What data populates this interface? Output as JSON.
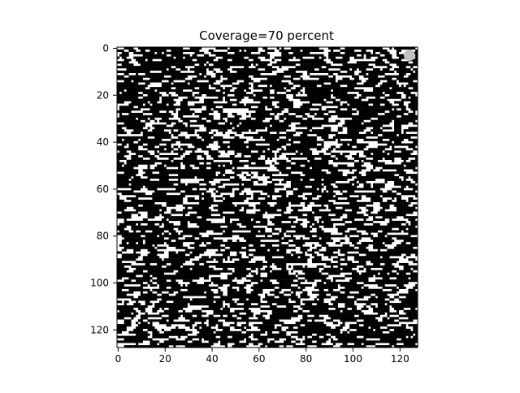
{
  "chart_data": {
    "type": "heatmap",
    "title": "Coverage=70 percent",
    "xlabel": "",
    "ylabel": "",
    "grid": false,
    "legend": "none",
    "rows": 128,
    "cols": 128,
    "coverage_percent": 70,
    "x_range": [
      0,
      127
    ],
    "y_range": [
      0,
      127
    ],
    "y_inverted": true,
    "x_ticks": [
      0,
      20,
      40,
      60,
      80,
      100,
      120
    ],
    "y_ticks": [
      0,
      20,
      40,
      60,
      80,
      100,
      120
    ],
    "x_tick_labels": [
      "0",
      "20",
      "40",
      "60",
      "80",
      "100",
      "120"
    ],
    "y_tick_labels": [
      "0",
      "20",
      "40",
      "60",
      "80",
      "100",
      "120"
    ],
    "colors": {
      "filled": "#000000",
      "empty": "#ffffff",
      "marker": "#c0c0c0"
    },
    "marker": {
      "x": 124,
      "y": 3
    }
  }
}
